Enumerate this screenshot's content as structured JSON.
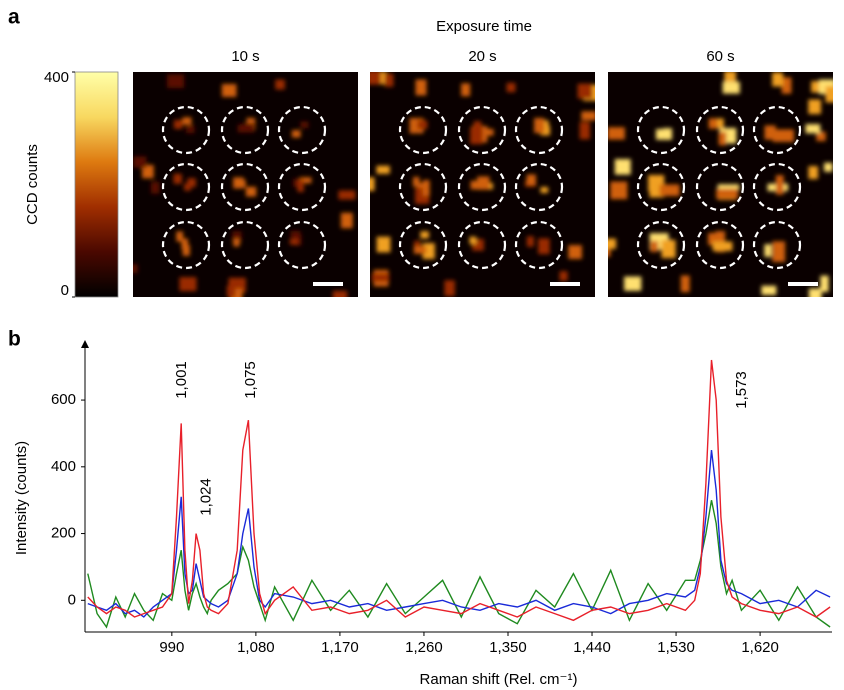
{
  "chart_data": [
    {
      "type": "image-grid",
      "panel_label": "a",
      "title": "Exposure time",
      "images": [
        "10 s",
        "20 s",
        "60 s"
      ],
      "colorbar": {
        "label": "CCD counts",
        "lim": [
          0,
          400
        ],
        "ticks": [
          0,
          400
        ],
        "colormap": [
          "#000000",
          "#4a0800",
          "#a02e00",
          "#de7a10",
          "#f8d860",
          "#ffffa8"
        ]
      }
    },
    {
      "type": "line",
      "panel_label": "b",
      "xlabel": "Raman shift (Rel. cm⁻¹)",
      "ylabel": "Intensity (counts)",
      "xlim": [
        897,
        1697
      ],
      "ylim": [
        -95,
        780
      ],
      "xticks": [
        990,
        {
          "value": 1080,
          "label": "1,080"
        },
        {
          "value": 1170,
          "label": "1,170"
        },
        {
          "value": 1260,
          "label": "1,260"
        },
        {
          "value": 1350,
          "label": "1,350"
        },
        {
          "value": 1440,
          "label": "1,440"
        },
        {
          "value": 1530,
          "label": "1,530"
        },
        {
          "value": 1620,
          "label": "1,620"
        }
      ],
      "yticks": [
        0,
        200,
        400,
        600
      ],
      "annotations": [
        {
          "text": "1,001",
          "x": 1001
        },
        {
          "text": "1,024",
          "x": 1024
        },
        {
          "text": "1,075",
          "x": 1075
        },
        {
          "text": "1,573",
          "x": 1573
        }
      ],
      "x": [
        900,
        910,
        920,
        930,
        940,
        950,
        960,
        970,
        980,
        990,
        995,
        1000,
        1004,
        1008,
        1012,
        1016,
        1020,
        1024,
        1028,
        1032,
        1040,
        1050,
        1060,
        1066,
        1072,
        1078,
        1084,
        1090,
        1100,
        1120,
        1140,
        1160,
        1180,
        1200,
        1220,
        1240,
        1260,
        1280,
        1300,
        1320,
        1340,
        1360,
        1380,
        1400,
        1420,
        1440,
        1460,
        1480,
        1500,
        1520,
        1540,
        1550,
        1556,
        1562,
        1568,
        1573,
        1578,
        1584,
        1590,
        1600,
        1620,
        1640,
        1660,
        1680,
        1695
      ],
      "series": [
        {
          "color": "#e8202a",
          "values": [
            10,
            -20,
            -40,
            -20,
            -30,
            -50,
            -40,
            -30,
            -20,
            20,
            250,
            530,
            150,
            -10,
            60,
            200,
            150,
            20,
            -20,
            -30,
            -40,
            -10,
            150,
            450,
            540,
            200,
            20,
            -40,
            0,
            40,
            -30,
            -20,
            -40,
            -30,
            0,
            -50,
            -20,
            -30,
            -40,
            -10,
            -30,
            -50,
            -20,
            -40,
            -60,
            -30,
            -20,
            -40,
            -30,
            -10,
            -30,
            0,
            80,
            350,
            720,
            600,
            250,
            60,
            10,
            -10,
            -30,
            -40,
            -20,
            -50,
            -20
          ]
        },
        {
          "color": "#1a2ad8",
          "values": [
            -10,
            -20,
            -30,
            -10,
            -40,
            -30,
            -50,
            -20,
            0,
            20,
            150,
            310,
            80,
            20,
            30,
            110,
            60,
            10,
            0,
            -10,
            -20,
            0,
            80,
            200,
            275,
            100,
            0,
            -20,
            20,
            10,
            -10,
            0,
            -20,
            -10,
            -30,
            -20,
            -10,
            0,
            -20,
            -30,
            -10,
            -20,
            0,
            -30,
            -10,
            -20,
            -40,
            -10,
            0,
            20,
            10,
            30,
            100,
            250,
            450,
            330,
            120,
            50,
            30,
            20,
            -10,
            0,
            -20,
            30,
            10
          ]
        },
        {
          "color": "#1f8a1f",
          "values": [
            80,
            -40,
            -80,
            10,
            -50,
            20,
            -30,
            -60,
            20,
            0,
            80,
            150,
            30,
            -30,
            20,
            50,
            10,
            -20,
            -40,
            0,
            30,
            50,
            80,
            160,
            120,
            40,
            -10,
            -60,
            40,
            -60,
            60,
            -30,
            30,
            -50,
            50,
            -40,
            10,
            60,
            -50,
            70,
            -40,
            -70,
            30,
            -20,
            80,
            -30,
            90,
            -60,
            50,
            -30,
            60,
            60,
            120,
            200,
            300,
            230,
            100,
            20,
            60,
            -30,
            30,
            -60,
            40,
            -50,
            -80
          ]
        }
      ]
    }
  ]
}
